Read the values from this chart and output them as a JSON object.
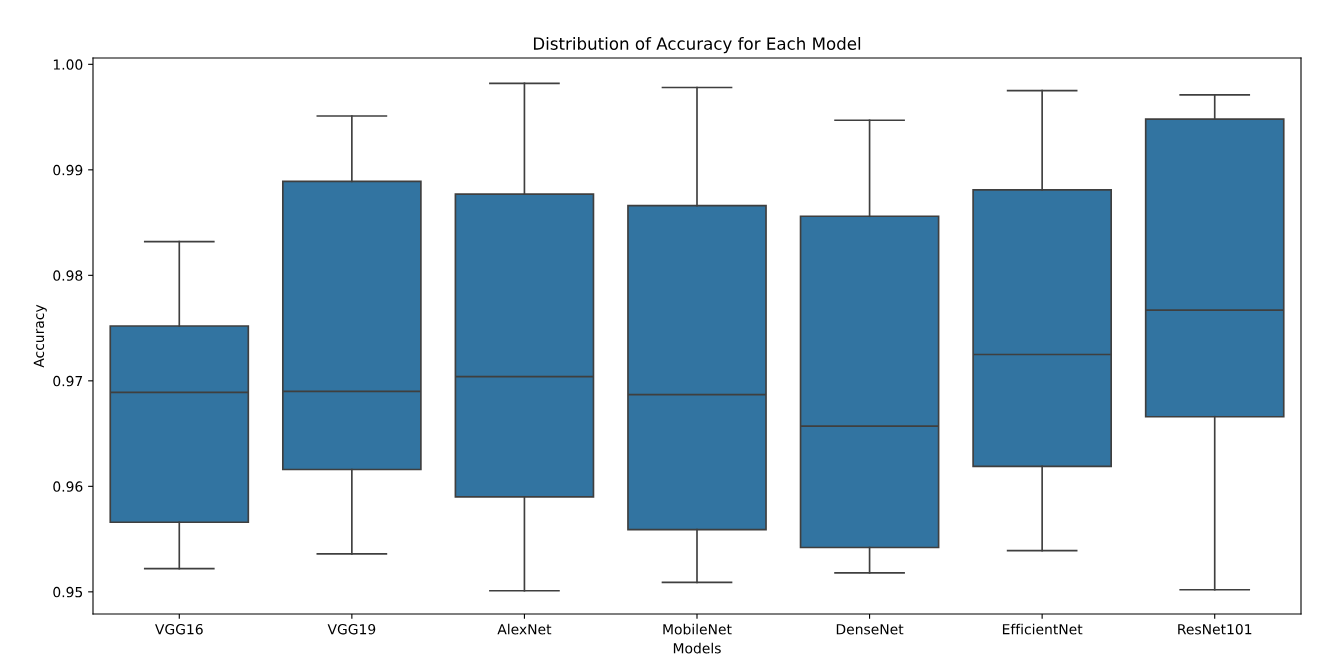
{
  "chart_data": {
    "type": "box",
    "title": "Distribution of Accuracy for Each Model",
    "xlabel": "Models",
    "ylabel": "Accuracy",
    "categories": [
      "VGG16",
      "VGG19",
      "AlexNet",
      "MobileNet",
      "DenseNet",
      "EfficientNet",
      "ResNet101"
    ],
    "series": [
      {
        "color": "#3274a1",
        "boxes": [
          {
            "low": 0.9522,
            "q1": 0.9566,
            "median": 0.9689,
            "q3": 0.9752,
            "high": 0.9832
          },
          {
            "low": 0.9536,
            "q1": 0.9616,
            "median": 0.969,
            "q3": 0.9889,
            "high": 0.9951
          },
          {
            "low": 0.9501,
            "q1": 0.959,
            "median": 0.9704,
            "q3": 0.9877,
            "high": 0.9982
          },
          {
            "low": 0.9509,
            "q1": 0.9559,
            "median": 0.9687,
            "q3": 0.9866,
            "high": 0.9978
          },
          {
            "low": 0.9518,
            "q1": 0.9542,
            "median": 0.9657,
            "q3": 0.9856,
            "high": 0.9947
          },
          {
            "low": 0.9539,
            "q1": 0.9619,
            "median": 0.9725,
            "q3": 0.9881,
            "high": 0.9975
          },
          {
            "low": 0.9502,
            "q1": 0.9666,
            "median": 0.9767,
            "q3": 0.9948,
            "high": 0.9971
          }
        ]
      }
    ],
    "ylim": [
      0.9479,
      1.0006
    ],
    "yticks": [
      {
        "value": 0.95,
        "label": "0.95"
      },
      {
        "value": 0.96,
        "label": "0.96"
      },
      {
        "value": 0.97,
        "label": "0.97"
      },
      {
        "value": 0.98,
        "label": "0.98"
      },
      {
        "value": 0.99,
        "label": "0.99"
      },
      {
        "value": 1.0,
        "label": "1.00"
      }
    ],
    "grid": false
  }
}
